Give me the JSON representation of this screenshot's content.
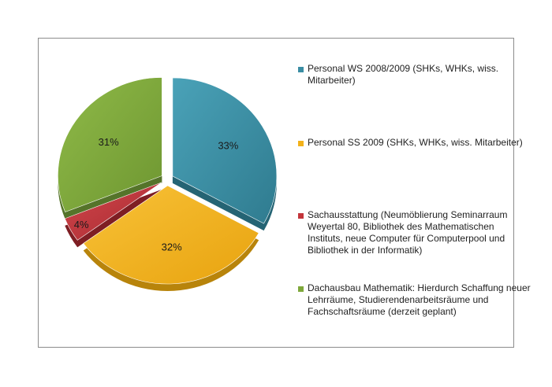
{
  "chart_data": {
    "type": "pie",
    "exploded": true,
    "style": "3d",
    "title": "",
    "legend_position": "right",
    "slices": [
      {
        "label": "Personal WS 2008/2009 (SHKs, WHKs, wiss. Mitarbeiter)",
        "value": 33,
        "display": "33%",
        "color": "#3a8da3"
      },
      {
        "label": "Personal SS 2009 (SHKs, WHKs, wiss. Mitarbeiter)",
        "value": 32,
        "display": "32%",
        "color": "#f3b21a"
      },
      {
        "label": "Sachausstattung (Neumöblierung Seminarraum Weyertal 80, Bibliothek des Mathematischen Instituts, neue Computer für Computerpool und Bibliothek in der Informatik)",
        "value": 4,
        "display": "4%",
        "color": "#c3353b"
      },
      {
        "label": "Dachausbau Mathematik: Hierdurch Schaffung neuer Lehrräume, Studierendenarbeitsräume und Fachschaftsräume (derzeit geplant)",
        "value": 31,
        "display": "31%",
        "color": "#7ea83a"
      }
    ]
  }
}
